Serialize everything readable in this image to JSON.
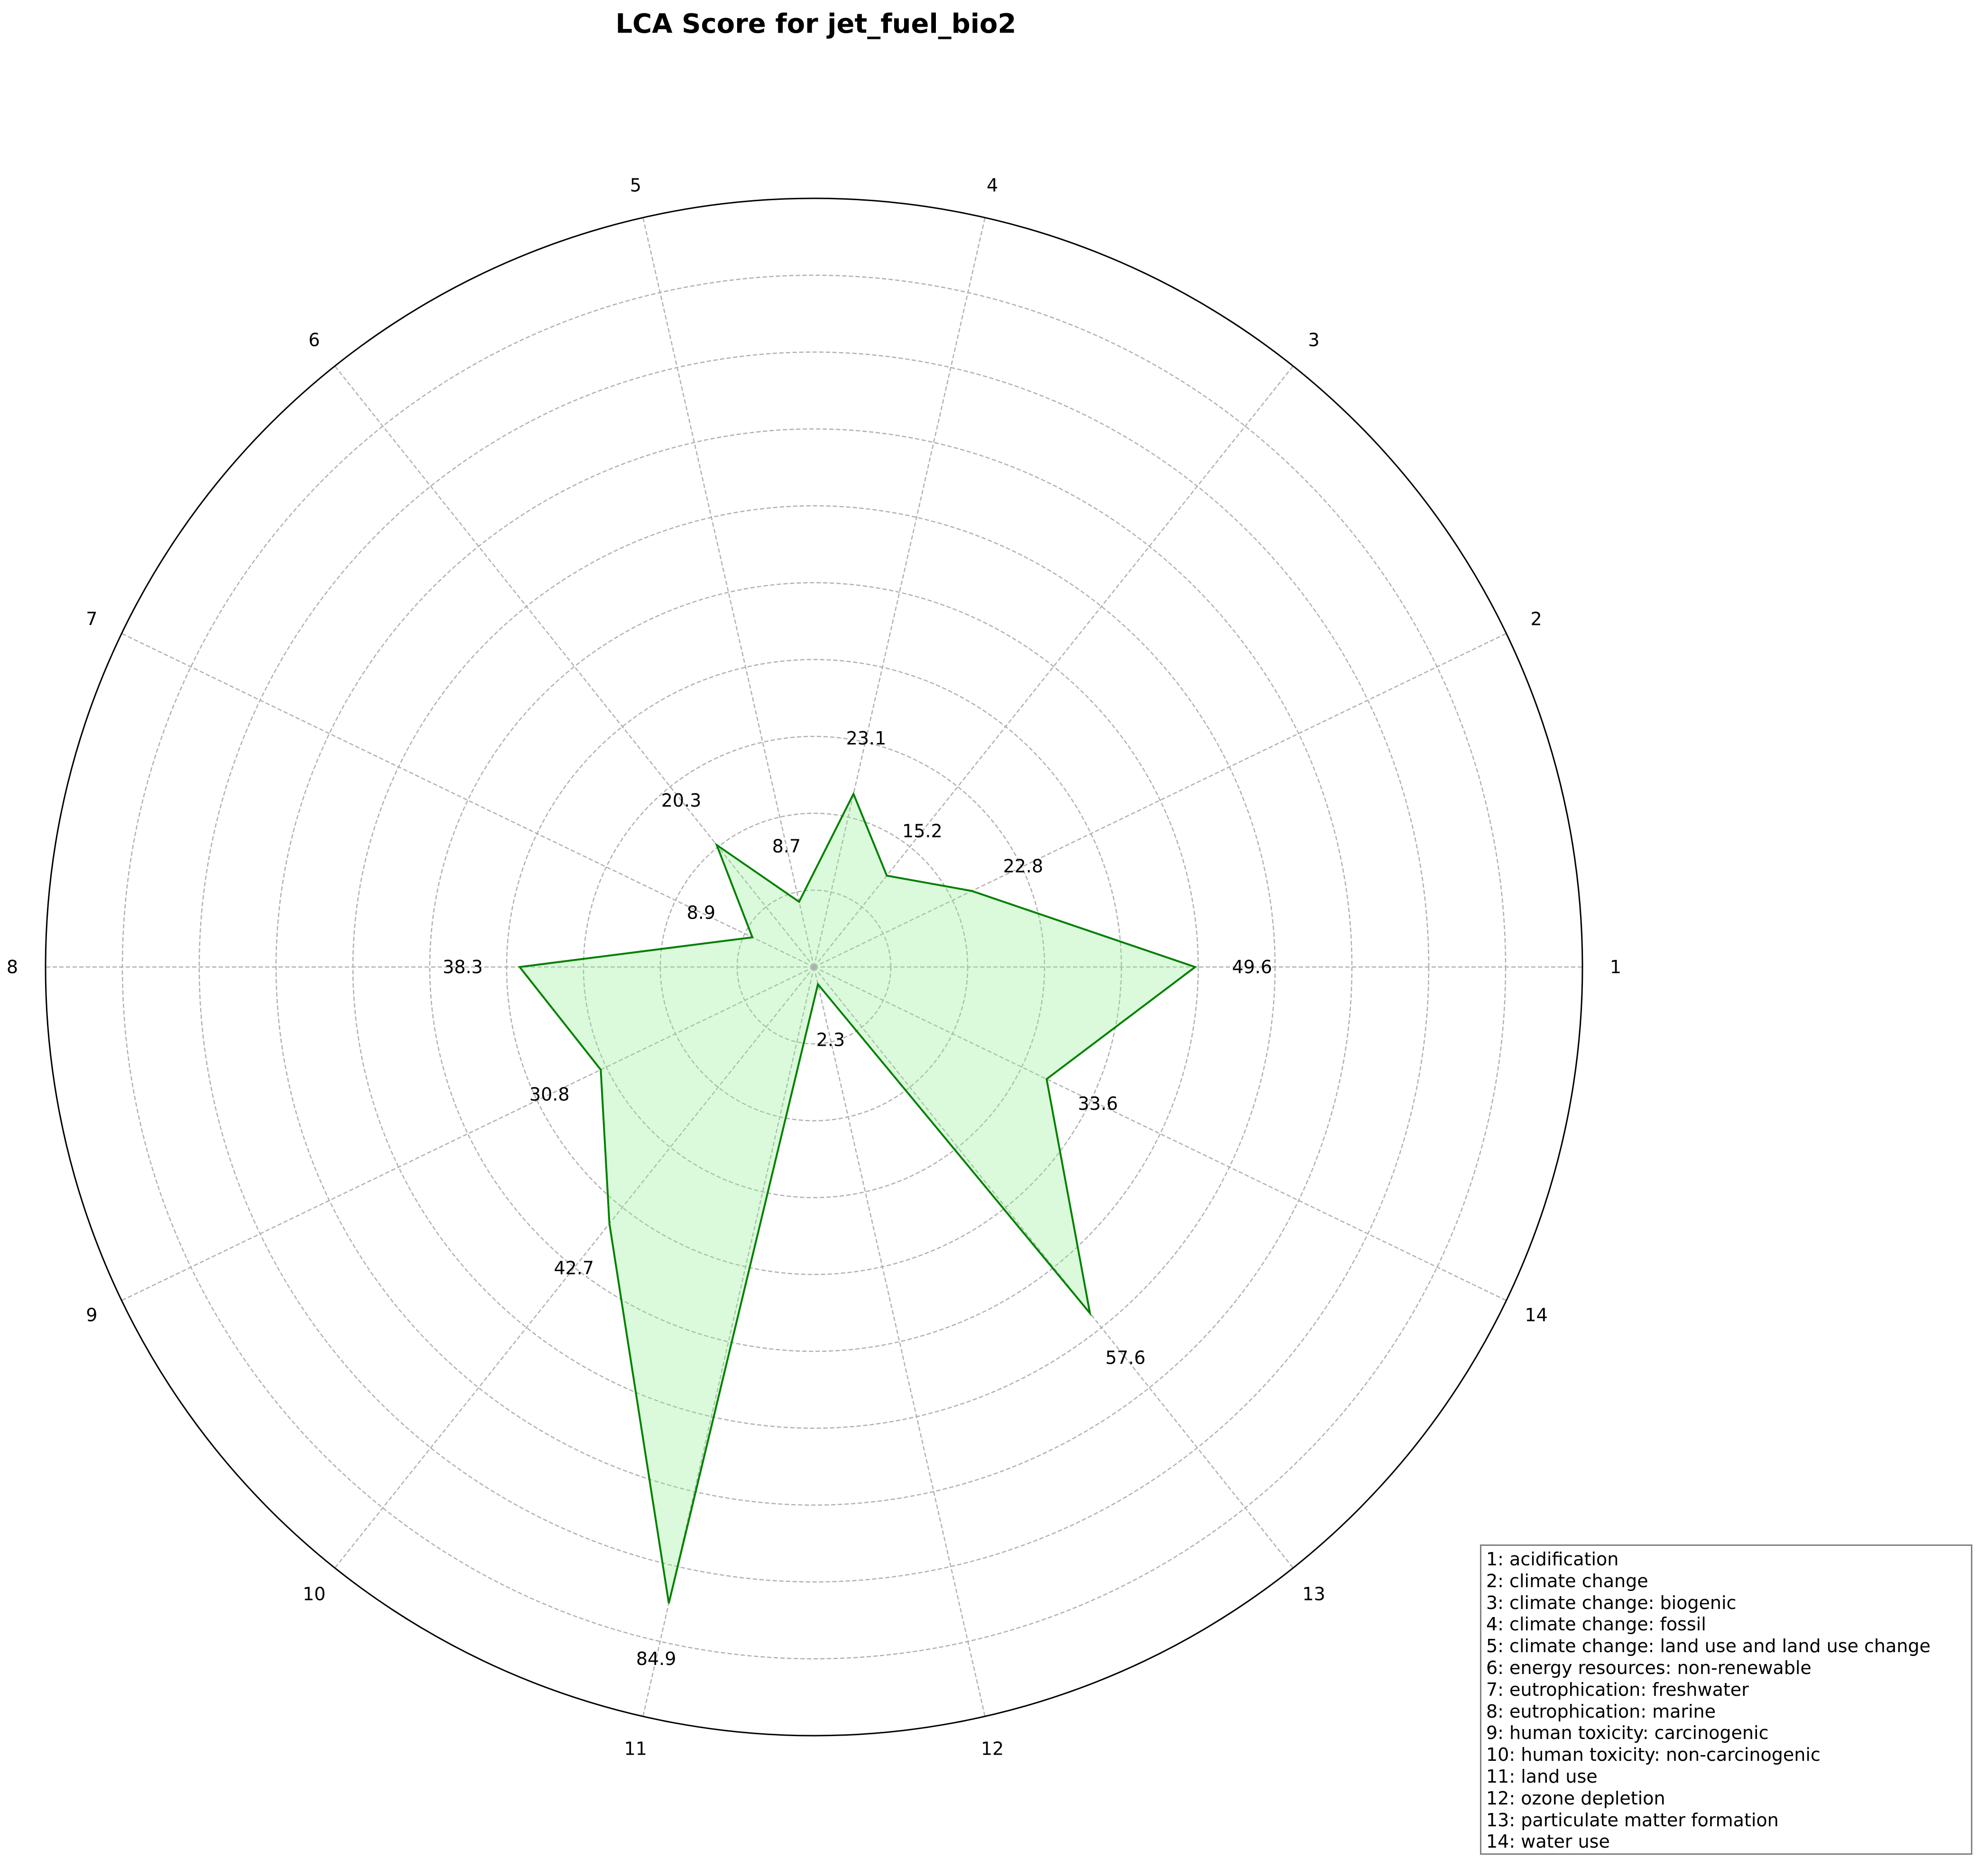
{
  "chart_data": {
    "type": "radar",
    "title": "LCA Score for jet_fuel_bio2",
    "axes": [
      "1",
      "2",
      "3",
      "4",
      "5",
      "6",
      "7",
      "8",
      "9",
      "10",
      "11",
      "12",
      "13",
      "14"
    ],
    "values": [
      49.6,
      22.8,
      15.2,
      23.1,
      8.7,
      20.3,
      8.9,
      38.3,
      30.8,
      42.7,
      84.9,
      2.3,
      57.6,
      33.6
    ],
    "value_labels": [
      "49.6",
      "22.8",
      "15.2",
      "23.1",
      "8.7",
      "20.3",
      "8.9",
      "38.3",
      "30.8",
      "42.7",
      "84.9",
      "2.3",
      "57.6",
      "33.6"
    ],
    "rmax": 100,
    "rings": [
      10,
      20,
      30,
      40,
      50,
      60,
      70,
      80,
      90,
      100
    ],
    "grid": true,
    "colors": {
      "line": "#008000",
      "fill": "#90ee90",
      "grid": "#b0b0b0",
      "frame": "#000000"
    },
    "legend": {
      "position": "bottom-right",
      "entries": [
        "1: acidification",
        "2: climate change",
        "3: climate change: biogenic",
        "4: climate change: fossil",
        "5: climate change: land use and land use change",
        "6: energy resources: non-renewable",
        "7: eutrophication: freshwater",
        "8: eutrophication: marine",
        "9: human toxicity: carcinogenic",
        "10: human toxicity: non-carcinogenic",
        "11: land use",
        "12: ozone depletion",
        "13: particulate matter formation",
        "14: water use"
      ]
    }
  }
}
